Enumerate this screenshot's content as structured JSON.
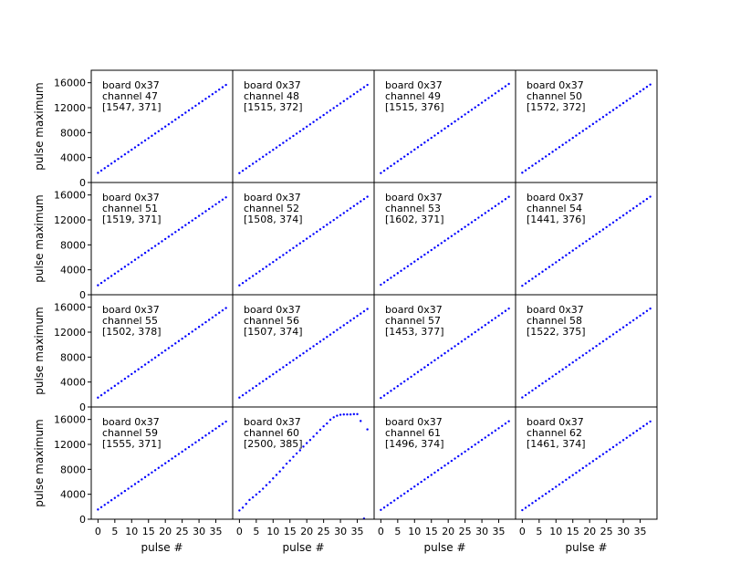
{
  "chart_data": {
    "type": "scatter",
    "layout": {
      "rows": 4,
      "cols": 4
    },
    "xlabel": "pulse #",
    "ylabel": "pulse maximum",
    "xlim": [
      -2,
      40
    ],
    "ylim": [
      0,
      18000
    ],
    "xticks": [
      0,
      5,
      10,
      15,
      20,
      25,
      30,
      35
    ],
    "yticks": [
      0,
      4000,
      8000,
      12000,
      16000
    ],
    "marker_color": "#0000ff",
    "panels": [
      {
        "lines": [
          "board 0x37",
          "channel 47",
          "[1547, 371]"
        ],
        "intercept": 1547,
        "slope": 371
      },
      {
        "lines": [
          "board 0x37",
          "channel 48",
          "[1515, 372]"
        ],
        "intercept": 1515,
        "slope": 372
      },
      {
        "lines": [
          "board 0x37",
          "channel 49",
          "[1515, 376]"
        ],
        "intercept": 1515,
        "slope": 376
      },
      {
        "lines": [
          "board 0x37",
          "channel 50",
          "[1572, 372]"
        ],
        "intercept": 1572,
        "slope": 372
      },
      {
        "lines": [
          "board 0x37",
          "channel 51",
          "[1519, 371]"
        ],
        "intercept": 1519,
        "slope": 371
      },
      {
        "lines": [
          "board 0x37",
          "channel 52",
          "[1508, 374]"
        ],
        "intercept": 1508,
        "slope": 374
      },
      {
        "lines": [
          "board 0x37",
          "channel 53",
          "[1602, 371]"
        ],
        "intercept": 1602,
        "slope": 371
      },
      {
        "lines": [
          "board 0x37",
          "channel 54",
          "[1441, 376]"
        ],
        "intercept": 1441,
        "slope": 376
      },
      {
        "lines": [
          "board 0x37",
          "channel 55",
          "[1502, 378]"
        ],
        "intercept": 1502,
        "slope": 378
      },
      {
        "lines": [
          "board 0x37",
          "channel 56",
          "[1507, 374]"
        ],
        "intercept": 1507,
        "slope": 374
      },
      {
        "lines": [
          "board 0x37",
          "channel 57",
          "[1453, 377]"
        ],
        "intercept": 1453,
        "slope": 377
      },
      {
        "lines": [
          "board 0x37",
          "channel 58",
          "[1522, 375]"
        ],
        "intercept": 1522,
        "slope": 375
      },
      {
        "lines": [
          "board 0x37",
          "channel 59",
          "[1555, 371]"
        ],
        "intercept": 1555,
        "slope": 371
      },
      {
        "lines": [
          "board 0x37",
          "channel 60",
          "[2500, 385]"
        ],
        "intercept": 2500,
        "slope": 385,
        "y": [
          1400,
          1850,
          2450,
          3100,
          3500,
          3950,
          4400,
          4900,
          5450,
          5950,
          6550,
          7100,
          7650,
          8250,
          8900,
          9400,
          10000,
          10550,
          11050,
          11650,
          12200,
          12700,
          13250,
          13800,
          14350,
          14900,
          15350,
          15950,
          16350,
          16600,
          16750,
          16800,
          16800,
          16800,
          16850,
          16850,
          15750,
          100,
          14400
        ]
      },
      {
        "lines": [
          "board 0x37",
          "channel 61",
          "[1496, 374]"
        ],
        "intercept": 1496,
        "slope": 374
      },
      {
        "lines": [
          "board 0x37",
          "channel 62",
          "[1461, 374]"
        ],
        "intercept": 1461,
        "slope": 374
      }
    ]
  }
}
